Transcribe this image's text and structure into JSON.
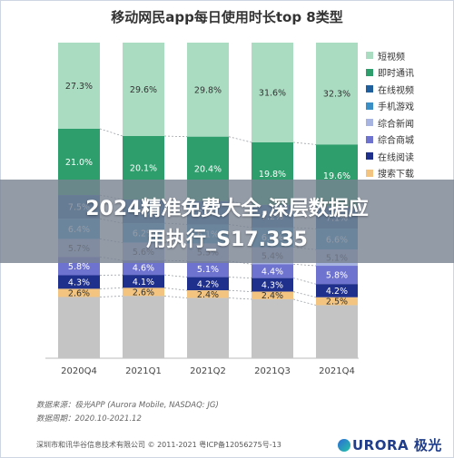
{
  "chart_data": {
    "type": "bar",
    "title": "移动网民app每日使用时长top 8类型",
    "categories": [
      "2020Q4",
      "2021Q1",
      "2021Q2",
      "2021Q3",
      "2021Q4"
    ],
    "ylim": [
      0,
      100
    ],
    "legend_position": "right",
    "series": [
      {
        "name": "短视频",
        "color": "#a9dcc1",
        "values": [
          27.3,
          29.6,
          29.8,
          31.6,
          32.3
        ]
      },
      {
        "name": "即时通讯",
        "color": "#2e9e6c",
        "values": [
          21.0,
          20.1,
          20.4,
          19.8,
          19.6
        ]
      },
      {
        "name": "在线视频",
        "color": "#1f5f9e",
        "values": [
          7.5,
          7.5,
          7.4,
          7.2,
          7.1
        ]
      },
      {
        "name": "手机游戏",
        "color": "#3a8fc7",
        "values": [
          6.4,
          6.2,
          6.1,
          6.2,
          6.6
        ]
      },
      {
        "name": "综合新闻",
        "color": "#a7b3e0",
        "values": [
          5.7,
          5.6,
          5.5,
          5.4,
          5.1
        ]
      },
      {
        "name": "综合商城",
        "color": "#6f73d0",
        "values": [
          5.8,
          4.6,
          5.1,
          4.4,
          5.8
        ]
      },
      {
        "name": "在线阅读",
        "color": "#1f2f8c",
        "values": [
          4.3,
          4.1,
          4.2,
          4.3,
          4.2
        ]
      },
      {
        "name": "搜索下载",
        "color": "#f2c47f",
        "values": [
          2.6,
          2.6,
          2.4,
          2.4,
          2.5
        ]
      }
    ],
    "other_color": "#c4c4c4"
  },
  "source_lines": [
    "数据来源：极光APP (Aurora Mobile, NASDAQ: JG)",
    "数据周期：2020.10-2021.12"
  ],
  "footer_note": "深圳市和讯华谷信息技术有限公司 © 2011-2021 粤ICP备12056275号-13",
  "logo_text": "URORA 极光",
  "banner_lines": [
    "2024精准免费大全,深层数据应",
    "用执行_S17.335"
  ]
}
